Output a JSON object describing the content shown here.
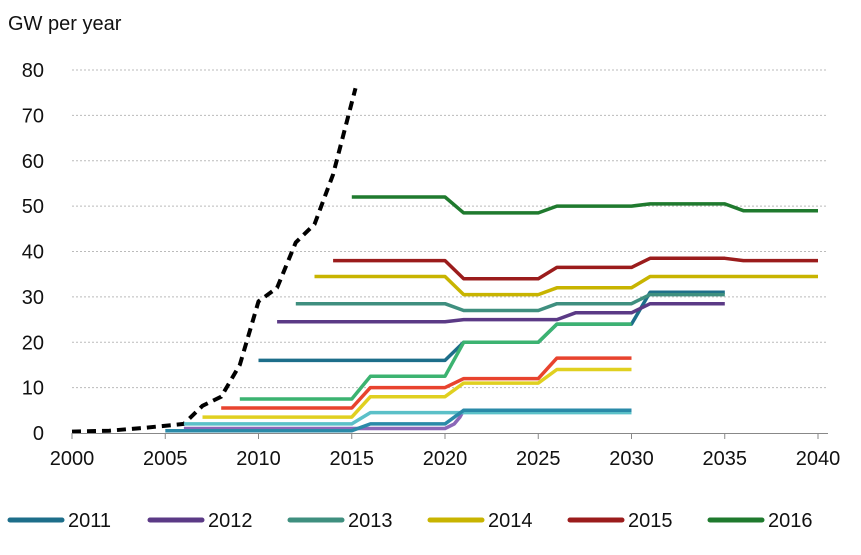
{
  "chart_data": {
    "type": "line",
    "ylabel": "GW per year",
    "xlim": [
      2000,
      2040
    ],
    "ylim": [
      0,
      80
    ],
    "xticks": [
      2000,
      2005,
      2010,
      2015,
      2020,
      2025,
      2030,
      2035,
      2040
    ],
    "yticks": [
      0,
      10,
      20,
      30,
      40,
      50,
      60,
      70,
      80
    ],
    "grid": "horizontal dotted",
    "legend": "bottom",
    "series": [
      {
        "name": "",
        "color": "#000000",
        "style": "dashed",
        "points": [
          [
            2000,
            0.3
          ],
          [
            2002,
            0.5
          ],
          [
            2004,
            1.2
          ],
          [
            2006,
            2
          ],
          [
            2007,
            6
          ],
          [
            2008,
            8
          ],
          [
            2009,
            15
          ],
          [
            2010,
            29
          ],
          [
            2011,
            32
          ],
          [
            2012,
            42
          ],
          [
            2013,
            46
          ],
          [
            2014,
            57
          ],
          [
            2015.2,
            76
          ]
        ]
      },
      {
        "name": "2011",
        "color": "#1d6e8a",
        "points": [
          [
            2010,
            16
          ],
          [
            2020,
            16
          ],
          [
            2021,
            20
          ],
          [
            2025,
            20
          ],
          [
            2026,
            24
          ],
          [
            2030,
            24
          ],
          [
            2031,
            31
          ],
          [
            2035,
            31
          ]
        ]
      },
      {
        "name": "2012",
        "color": "#5b3a86",
        "points": [
          [
            2011,
            24.5
          ],
          [
            2020,
            24.5
          ],
          [
            2021,
            25
          ],
          [
            2026,
            25
          ],
          [
            2027,
            26.5
          ],
          [
            2030,
            26.5
          ],
          [
            2031,
            28.5
          ],
          [
            2035,
            28.5
          ]
        ]
      },
      {
        "name": "2013",
        "color": "#3f8f7f",
        "points": [
          [
            2012,
            28.5
          ],
          [
            2020,
            28.5
          ],
          [
            2021,
            27
          ],
          [
            2025,
            27
          ],
          [
            2026,
            28.5
          ],
          [
            2030,
            28.5
          ],
          [
            2031,
            30.5
          ],
          [
            2035,
            30.5
          ]
        ]
      },
      {
        "name": "2014",
        "color": "#c8b400",
        "points": [
          [
            2013,
            34.5
          ],
          [
            2020,
            34.5
          ],
          [
            2021,
            30.5
          ],
          [
            2025,
            30.5
          ],
          [
            2026,
            32
          ],
          [
            2030,
            32
          ],
          [
            2031,
            34.5
          ],
          [
            2040,
            34.5
          ]
        ]
      },
      {
        "name": "2015",
        "color": "#9b1c1c",
        "points": [
          [
            2014,
            38
          ],
          [
            2020,
            38
          ],
          [
            2021,
            34
          ],
          [
            2025,
            34
          ],
          [
            2026,
            36.5
          ],
          [
            2030,
            36.5
          ],
          [
            2031,
            38.5
          ],
          [
            2035,
            38.5
          ],
          [
            2036,
            38
          ],
          [
            2040,
            38
          ]
        ]
      },
      {
        "name": "2016",
        "color": "#1f7a2e",
        "points": [
          [
            2015,
            52
          ],
          [
            2020,
            52
          ],
          [
            2021,
            48.5
          ],
          [
            2025,
            48.5
          ],
          [
            2026,
            50
          ],
          [
            2030,
            50
          ],
          [
            2031,
            50.5
          ],
          [
            2035,
            50.5
          ],
          [
            2036,
            49
          ],
          [
            2040,
            49
          ]
        ]
      },
      {
        "name": "",
        "color": "#3cb371",
        "points": [
          [
            2009,
            7.5
          ],
          [
            2015,
            7.5
          ],
          [
            2016,
            12.5
          ],
          [
            2020,
            12.5
          ],
          [
            2021,
            20
          ],
          [
            2025,
            20
          ],
          [
            2026,
            24
          ],
          [
            2030,
            24
          ]
        ]
      },
      {
        "name": "",
        "color": "#e8432e",
        "points": [
          [
            2008,
            5.5
          ],
          [
            2015,
            5.5
          ],
          [
            2016,
            10
          ],
          [
            2020,
            10
          ],
          [
            2021,
            12
          ],
          [
            2025,
            12
          ],
          [
            2026,
            16.5
          ],
          [
            2030,
            16.5
          ]
        ]
      },
      {
        "name": "",
        "color": "#e0d020",
        "points": [
          [
            2007,
            3.5
          ],
          [
            2015,
            3.5
          ],
          [
            2016,
            8
          ],
          [
            2020,
            8
          ],
          [
            2021,
            11
          ],
          [
            2025,
            11
          ],
          [
            2026,
            14
          ],
          [
            2030,
            14
          ]
        ]
      },
      {
        "name": "",
        "color": "#8b67b8",
        "points": [
          [
            2006,
            1
          ],
          [
            2020,
            1
          ],
          [
            2020.5,
            2
          ],
          [
            2020.8,
            3.5
          ],
          [
            2021,
            5
          ],
          [
            2030,
            5
          ]
        ]
      },
      {
        "name": "",
        "color": "#5bc0c8",
        "points": [
          [
            2006,
            2
          ],
          [
            2015,
            2
          ],
          [
            2016,
            4.5
          ],
          [
            2030,
            4.5
          ]
        ]
      },
      {
        "name": "",
        "color": "#2a8aa8",
        "points": [
          [
            2005,
            0.5
          ],
          [
            2015,
            0.5
          ],
          [
            2016,
            2
          ],
          [
            2020,
            2
          ],
          [
            2021,
            5
          ],
          [
            2030,
            5
          ]
        ]
      }
    ]
  }
}
